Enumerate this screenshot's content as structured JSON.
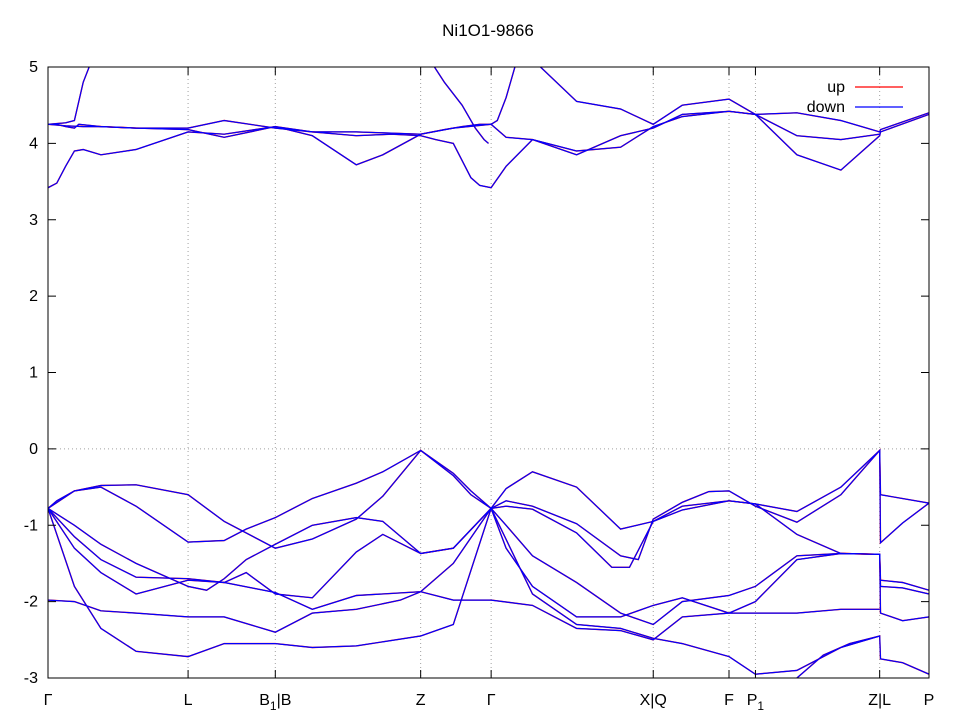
{
  "chart_data": {
    "type": "line",
    "title": "Ni1O1-9866",
    "xlabel": "",
    "ylabel": "",
    "ylim": [
      -3,
      5
    ],
    "xlim": [
      0,
      1
    ],
    "yticks": [
      -3,
      -2,
      -1,
      0,
      1,
      2,
      3,
      4,
      5
    ],
    "x_ticks": [
      {
        "label": "Γ",
        "sub": "",
        "suffix": "",
        "x": 0.0
      },
      {
        "label": "L",
        "sub": "",
        "suffix": "",
        "x": 0.159
      },
      {
        "label": "B",
        "sub": "1",
        "suffix": "|B",
        "x": 0.258
      },
      {
        "label": "Z",
        "sub": "",
        "suffix": "",
        "x": 0.423
      },
      {
        "label": "Γ",
        "sub": "",
        "suffix": "",
        "x": 0.503
      },
      {
        "label": "X|Q",
        "sub": "",
        "suffix": "",
        "x": 0.687
      },
      {
        "label": "F",
        "sub": "",
        "suffix": "",
        "x": 0.773
      },
      {
        "label": "P",
        "sub": "1",
        "suffix": "",
        "x": 0.803
      },
      {
        "label": "Z|L",
        "sub": "",
        "suffix": "",
        "x": 0.944
      },
      {
        "label": "P",
        "sub": "",
        "suffix": "",
        "x": 1.0
      }
    ],
    "hline": 0,
    "grid": true,
    "legend_position": "top-right",
    "legend": [
      {
        "name": "up",
        "color": "#ff0000"
      },
      {
        "name": "down",
        "color": "#0000ff"
      }
    ],
    "series": [
      {
        "x": [
          0,
          0.01,
          0.03,
          0.06,
          0.1,
          0.159,
          0.2,
          0.258,
          0.3,
          0.35,
          0.38,
          0.423,
          0.46,
          0.48,
          0.503,
          0.52,
          0.55,
          0.6,
          0.65,
          0.687,
          0.72,
          0.773,
          0.803,
          0.85,
          0.9,
          0.944,
          0.945,
          1.0
        ],
        "y": [
          -0.78,
          -0.68,
          -0.55,
          -0.48,
          -0.47,
          -0.6,
          -0.95,
          -1.3,
          -1.18,
          -0.92,
          -0.62,
          -0.02,
          -0.35,
          -0.6,
          -0.78,
          -0.52,
          -0.3,
          -0.5,
          -1.05,
          -0.95,
          -0.75,
          -0.68,
          -0.72,
          -0.82,
          -0.5,
          -0.02,
          -0.6,
          -0.71
        ]
      },
      {
        "x": [
          0,
          0.03,
          0.06,
          0.1,
          0.159,
          0.2,
          0.225,
          0.258,
          0.3,
          0.35,
          0.38,
          0.423,
          0.46,
          0.48,
          0.503,
          0.52,
          0.55,
          0.6,
          0.65,
          0.67,
          0.687,
          0.72,
          0.75,
          0.773,
          0.803,
          0.85,
          0.9,
          0.944,
          0.945,
          0.97,
          1.0
        ],
        "y": [
          -0.78,
          -0.55,
          -0.5,
          -0.75,
          -1.22,
          -1.2,
          -1.05,
          -0.9,
          -0.65,
          -0.45,
          -0.3,
          -0.02,
          -0.32,
          -0.55,
          -0.78,
          -0.68,
          -0.75,
          -0.98,
          -1.4,
          -1.45,
          -0.92,
          -0.7,
          -0.56,
          -0.55,
          -0.75,
          -0.96,
          -0.6,
          -0.02,
          -1.23,
          -0.97,
          -0.71
        ]
      },
      {
        "x": [
          0,
          0.03,
          0.06,
          0.1,
          0.159,
          0.18,
          0.2,
          0.225,
          0.258,
          0.3,
          0.35,
          0.38,
          0.423,
          0.46,
          0.503,
          0.52,
          0.55,
          0.6,
          0.64,
          0.66,
          0.687,
          0.72,
          0.773,
          0.803,
          0.85,
          0.9,
          0.944,
          0.945,
          0.97,
          1.0
        ],
        "y": [
          -0.78,
          -1.0,
          -1.25,
          -1.5,
          -1.8,
          -1.85,
          -1.7,
          -1.45,
          -1.25,
          -1.0,
          -0.9,
          -0.95,
          -1.37,
          -1.3,
          -0.78,
          -0.75,
          -0.79,
          -1.1,
          -1.55,
          -1.55,
          -0.95,
          -0.8,
          -0.68,
          -0.72,
          -1.12,
          -1.37,
          -1.38,
          -1.72,
          -1.75,
          -1.85
        ]
      },
      {
        "x": [
          0,
          0.03,
          0.06,
          0.1,
          0.159,
          0.2,
          0.225,
          0.258,
          0.3,
          0.35,
          0.38,
          0.423,
          0.46,
          0.503,
          0.52,
          0.55,
          0.6,
          0.65,
          0.687,
          0.72,
          0.773,
          0.803,
          0.85,
          0.9,
          0.944,
          0.945,
          0.97,
          1.0
        ],
        "y": [
          -0.78,
          -1.15,
          -1.45,
          -1.68,
          -1.7,
          -1.75,
          -1.62,
          -1.9,
          -1.95,
          -1.35,
          -1.12,
          -1.37,
          -1.3,
          -0.78,
          -1.0,
          -1.4,
          -1.75,
          -2.15,
          -2.3,
          -2.0,
          -1.92,
          -1.8,
          -1.4,
          -1.37,
          -1.38,
          -1.8,
          -1.82,
          -1.9
        ]
      },
      {
        "x": [
          0,
          0.03,
          0.06,
          0.1,
          0.159,
          0.2,
          0.258,
          0.3,
          0.35,
          0.423,
          0.46,
          0.503,
          0.52,
          0.55,
          0.6,
          0.65,
          0.687,
          0.72,
          0.773,
          0.803,
          0.85,
          0.9,
          0.944,
          0.945,
          0.97,
          1.0
        ],
        "y": [
          -0.78,
          -1.3,
          -1.62,
          -1.9,
          -1.72,
          -1.75,
          -1.88,
          -2.1,
          -1.92,
          -1.87,
          -1.5,
          -0.78,
          -1.3,
          -1.8,
          -2.2,
          -2.2,
          -2.05,
          -1.95,
          -2.15,
          -2.0,
          -1.45,
          -1.37,
          -1.38,
          -2.15,
          -2.25,
          -2.2
        ]
      },
      {
        "x": [
          0,
          0.03,
          0.06,
          0.1,
          0.159,
          0.2,
          0.258,
          0.3,
          0.35,
          0.4,
          0.423,
          0.46,
          0.503,
          0.55,
          0.6,
          0.65,
          0.687,
          0.72,
          0.773,
          0.803,
          0.85,
          0.9,
          0.944
        ],
        "y": [
          -1.98,
          -2.0,
          -2.12,
          -2.15,
          -2.2,
          -2.2,
          -2.4,
          -2.15,
          -2.1,
          -1.98,
          -1.87,
          -1.98,
          -1.98,
          -2.05,
          -2.35,
          -2.38,
          -2.5,
          -2.2,
          -2.15,
          -2.15,
          -2.15,
          -2.1,
          -2.1
        ]
      },
      {
        "x": [
          0,
          0.03,
          0.06,
          0.1,
          0.159,
          0.2,
          0.258,
          0.3,
          0.35,
          0.423,
          0.46,
          0.503,
          0.55,
          0.6,
          0.65,
          0.687,
          0.72,
          0.773,
          0.803,
          0.85,
          0.9,
          0.944
        ],
        "y": [
          -0.78,
          -1.8,
          -2.35,
          -2.65,
          -2.72,
          -2.55,
          -2.55,
          -2.6,
          -2.58,
          -2.45,
          -2.3,
          -0.78,
          -1.9,
          -2.3,
          -2.35,
          -2.48,
          -2.55,
          -2.72,
          -2.95,
          -2.9,
          -2.6,
          -2.45
        ]
      },
      {
        "x": [
          0.85,
          0.88,
          0.91,
          0.944,
          0.945,
          0.97,
          1.0
        ],
        "y": [
          -3.0,
          -2.7,
          -2.55,
          -2.45,
          -2.75,
          -2.8,
          -2.95
        ]
      },
      {
        "x": [
          0,
          0.01,
          0.02,
          0.03,
          0.04,
          0.06,
          0.1,
          0.159,
          0.2,
          0.258,
          0.3,
          0.35,
          0.39,
          0.423,
          0.44,
          0.46,
          0.48,
          0.49,
          0.503,
          0.52,
          0.55,
          0.6,
          0.65,
          0.687,
          0.72,
          0.773,
          0.803,
          0.85,
          0.9,
          0.944
        ],
        "y": [
          3.42,
          3.48,
          3.7,
          3.9,
          3.92,
          3.85,
          3.92,
          4.15,
          4.12,
          4.22,
          4.15,
          4.1,
          4.12,
          4.1,
          4.05,
          4.0,
          3.55,
          3.45,
          3.42,
          3.7,
          4.05,
          3.9,
          3.95,
          4.22,
          4.35,
          4.42,
          4.38,
          4.1,
          4.05,
          4.12
        ]
      },
      {
        "x": [
          0,
          0.01,
          0.02,
          0.03,
          0.035,
          0.06,
          0.1,
          0.159,
          0.2,
          0.258,
          0.3,
          0.35,
          0.38,
          0.423,
          0.46,
          0.503,
          0.52,
          0.55,
          0.6,
          0.65,
          0.687,
          0.72,
          0.773,
          0.803,
          0.85,
          0.9,
          0.944,
          0.945,
          1.0
        ],
        "y": [
          4.25,
          4.25,
          4.22,
          4.2,
          4.25,
          4.22,
          4.2,
          4.18,
          4.08,
          4.22,
          4.1,
          3.72,
          3.85,
          4.12,
          4.2,
          4.25,
          4.08,
          4.05,
          3.85,
          4.1,
          4.2,
          4.38,
          4.42,
          4.38,
          3.85,
          3.65,
          4.1,
          4.15,
          4.38
        ]
      },
      {
        "x": [
          0,
          0.02,
          0.03,
          0.04,
          0.05
        ],
        "y": [
          4.25,
          4.27,
          4.3,
          4.8,
          5.1
        ]
      },
      {
        "x": [
          0,
          0.02,
          0.04,
          0.06,
          0.1,
          0.159,
          0.2,
          0.258,
          0.3,
          0.35,
          0.423,
          0.45,
          0.47,
          0.49,
          0.503,
          0.51,
          0.52,
          0.53,
          0.55,
          0.6,
          0.65,
          0.687,
          0.72,
          0.773,
          0.803,
          0.85,
          0.9,
          0.944,
          0.945,
          1.0
        ],
        "y": [
          4.25,
          4.23,
          4.22,
          4.22,
          4.2,
          4.2,
          4.3,
          4.2,
          4.15,
          4.15,
          4.12,
          4.18,
          4.22,
          4.25,
          4.25,
          4.3,
          4.6,
          5.0,
          5.1,
          4.55,
          4.45,
          4.25,
          4.5,
          4.58,
          4.38,
          4.4,
          4.3,
          4.15,
          4.18,
          4.4
        ]
      },
      {
        "x": [
          0.433,
          0.45,
          0.47,
          0.485,
          0.495,
          0.5
        ],
        "y": [
          5.1,
          4.8,
          4.5,
          4.2,
          4.05,
          4.0
        ]
      }
    ]
  }
}
